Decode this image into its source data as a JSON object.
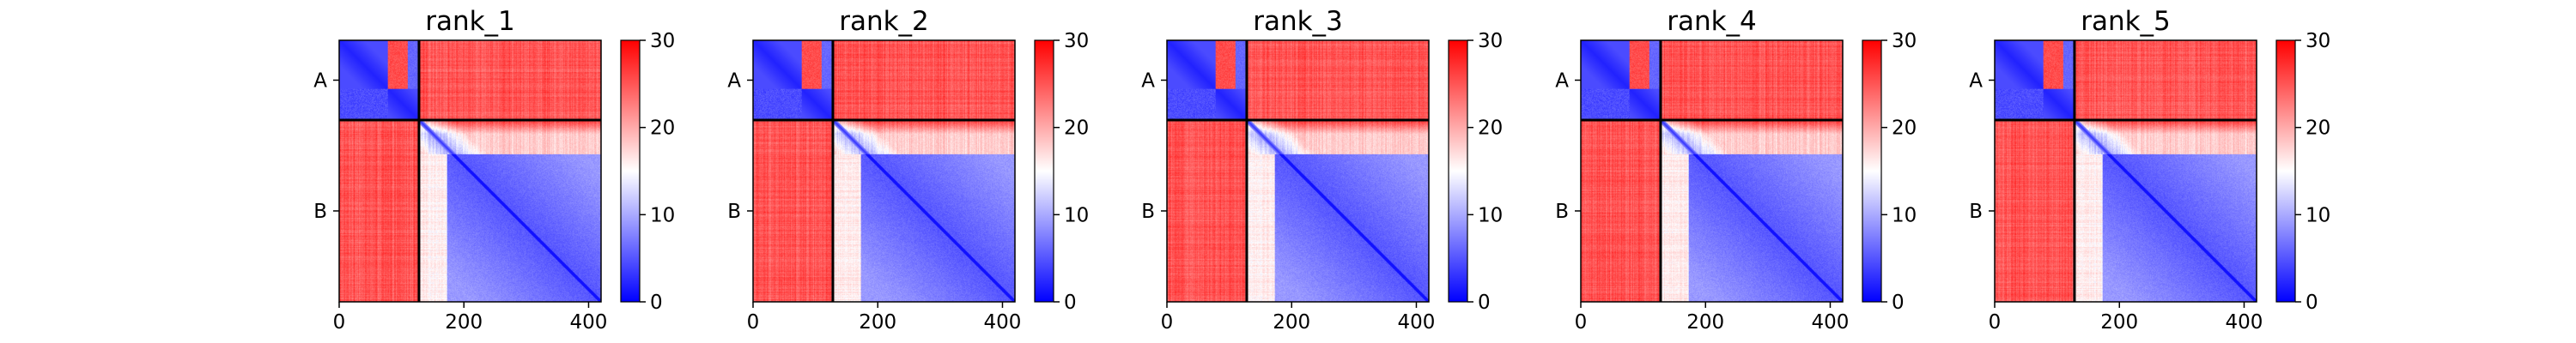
{
  "figure": {
    "colormap": {
      "name": "bwr",
      "low_color": "#0000ff",
      "mid_color": "#ffffff",
      "high_color": "#ff0000"
    }
  },
  "chart_data": [
    {
      "type": "heatmap",
      "title": "rank_1",
      "x_ticks": [
        "0",
        "200",
        "400"
      ],
      "x_tick_values": [
        0,
        200,
        400
      ],
      "xlim": [
        0,
        420
      ],
      "chain_labels": [
        "A",
        "B"
      ],
      "chain_boundary": 128,
      "colorbar_ticks": [
        "0",
        "10",
        "20",
        "30"
      ],
      "colorbar_tick_values": [
        0,
        10,
        20,
        30
      ],
      "value_range": [
        0,
        30
      ],
      "grid": false
    },
    {
      "type": "heatmap",
      "title": "rank_2",
      "x_ticks": [
        "0",
        "200",
        "400"
      ],
      "x_tick_values": [
        0,
        200,
        400
      ],
      "xlim": [
        0,
        420
      ],
      "chain_labels": [
        "A",
        "B"
      ],
      "chain_boundary": 128,
      "colorbar_ticks": [
        "0",
        "10",
        "20",
        "30"
      ],
      "colorbar_tick_values": [
        0,
        10,
        20,
        30
      ],
      "value_range": [
        0,
        30
      ],
      "grid": false
    },
    {
      "type": "heatmap",
      "title": "rank_3",
      "x_ticks": [
        "0",
        "200",
        "400"
      ],
      "x_tick_values": [
        0,
        200,
        400
      ],
      "xlim": [
        0,
        420
      ],
      "chain_labels": [
        "A",
        "B"
      ],
      "chain_boundary": 128,
      "colorbar_ticks": [
        "0",
        "10",
        "20",
        "30"
      ],
      "colorbar_tick_values": [
        0,
        10,
        20,
        30
      ],
      "value_range": [
        0,
        30
      ],
      "grid": false
    },
    {
      "type": "heatmap",
      "title": "rank_4",
      "x_ticks": [
        "0",
        "200",
        "400"
      ],
      "x_tick_values": [
        0,
        200,
        400
      ],
      "xlim": [
        0,
        420
      ],
      "chain_labels": [
        "A",
        "B"
      ],
      "chain_boundary": 128,
      "colorbar_ticks": [
        "0",
        "10",
        "20",
        "30"
      ],
      "colorbar_tick_values": [
        0,
        10,
        20,
        30
      ],
      "value_range": [
        0,
        30
      ],
      "grid": false
    },
    {
      "type": "heatmap",
      "title": "rank_5",
      "x_ticks": [
        "0",
        "200",
        "400"
      ],
      "x_tick_values": [
        0,
        200,
        400
      ],
      "xlim": [
        0,
        420
      ],
      "chain_labels": [
        "A",
        "B"
      ],
      "chain_boundary": 128,
      "colorbar_ticks": [
        "0",
        "10",
        "20",
        "30"
      ],
      "colorbar_tick_values": [
        0,
        10,
        20,
        30
      ],
      "value_range": [
        0,
        30
      ],
      "grid": false
    }
  ]
}
